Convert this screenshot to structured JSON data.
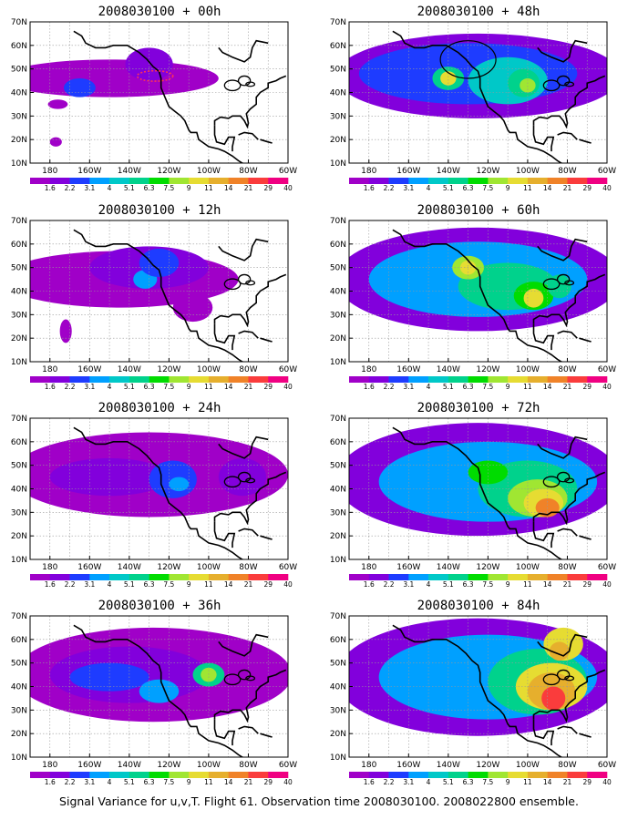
{
  "yticks": [
    "10N",
    "20N",
    "30N",
    "40N",
    "50N",
    "60N",
    "70N"
  ],
  "xticks": [
    "180",
    "160W",
    "140W",
    "120W",
    "100W",
    "80W",
    "60W"
  ],
  "colorbar": {
    "labels": [
      "1.6",
      "2.2",
      "3.1",
      "4",
      "5.1",
      "6.3",
      "7.5",
      "9",
      "11",
      "14",
      "21",
      "29",
      "40"
    ],
    "colors": [
      "#a000c8",
      "#8200dc",
      "#1e3cff",
      "#00a0ff",
      "#00c8c8",
      "#00d28c",
      "#00dc00",
      "#a0e632",
      "#e6dc32",
      "#e6af2d",
      "#f08228",
      "#fa3c3c",
      "#f00082"
    ]
  },
  "panels": [
    {
      "title": "2008030100 + 00h",
      "lead": 0
    },
    {
      "title": "2008030100 + 48h",
      "lead": 48
    },
    {
      "title": "2008030100 + 12h",
      "lead": 12
    },
    {
      "title": "2008030100 + 60h",
      "lead": 60
    },
    {
      "title": "2008030100 + 24h",
      "lead": 24
    },
    {
      "title": "2008030100 + 72h",
      "lead": 72
    },
    {
      "title": "2008030100 + 36h",
      "lead": 36
    },
    {
      "title": "2008030100 + 84h",
      "lead": 84
    }
  ],
  "caption": "Signal Variance for u,v,T. Flight 61. Observation time 2008030100. 2008022800 ensemble."
}
